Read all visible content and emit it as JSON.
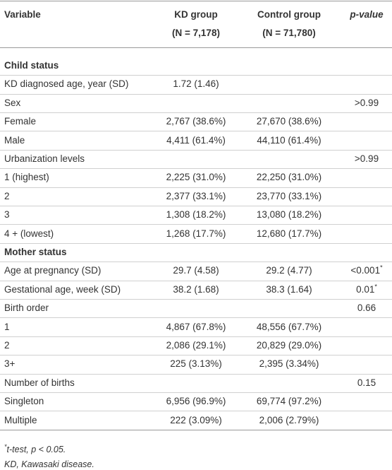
{
  "header": {
    "columns": [
      "Variable",
      "KD group",
      "Control group",
      "p-value"
    ],
    "subheaders": [
      null,
      "(N = 7,178)",
      "(N = 71,780)",
      null
    ]
  },
  "table": {
    "rows": [
      [
        "Child status"
      ],
      [
        "KD diagnosed age, year (SD)",
        "1.72 (1.46)",
        null,
        null
      ],
      [
        "Sex",
        null,
        null,
        ">0.99"
      ],
      [
        "Female",
        "2,767 (38.6%)",
        "27,670 (38.6%)",
        null
      ],
      [
        "Male",
        "4,411 (61.4%)",
        "44,110 (61.4%)",
        null
      ],
      [
        "Urbanization levels",
        null,
        null,
        ">0.99"
      ],
      [
        "1 (highest)",
        "2,225 (31.0%)",
        "22,250 (31.0%)",
        null
      ],
      [
        "2",
        "2,377 (33.1%)",
        "23,770 (33.1%)",
        null
      ],
      [
        "3",
        "1,308 (18.2%)",
        "13,080 (18.2%)",
        null
      ],
      [
        "4 + (lowest)",
        "1,268 (17.7%)",
        "12,680 (17.7%)",
        null
      ],
      [
        "Mother status"
      ],
      [
        "Age at pregnancy (SD)",
        "29.7 (4.58)",
        "29.2 (4.77)",
        {
          "text": "<0.001",
          "sup": "*"
        }
      ],
      [
        "Gestational age, week (SD)",
        "38.2 (1.68)",
        "38.3 (1.64)",
        {
          "text": "0.01",
          "sup": "*"
        }
      ],
      [
        "Birth order",
        null,
        null,
        "0.66"
      ],
      [
        "1",
        "4,867 (67.8%)",
        "48,556 (67.7%)",
        null
      ],
      [
        "2",
        "2,086 (29.1%)",
        "20,829 (29.0%)",
        null
      ],
      [
        "3+",
        "225 (3.13%)",
        "2,395 (3.34%)",
        null
      ],
      [
        "Number of births",
        null,
        null,
        "0.15"
      ],
      [
        "Singleton",
        "6,956 (96.9%)",
        "69,774 (97.2%)",
        null
      ],
      [
        "Multiple",
        "222 (3.09%)",
        "2,006 (2.79%)",
        null
      ]
    ]
  },
  "footnotes": [
    {
      "sup": "*",
      "text": "t-test, p < 0.05."
    },
    {
      "text": "KD, Kawasaki disease."
    }
  ]
}
